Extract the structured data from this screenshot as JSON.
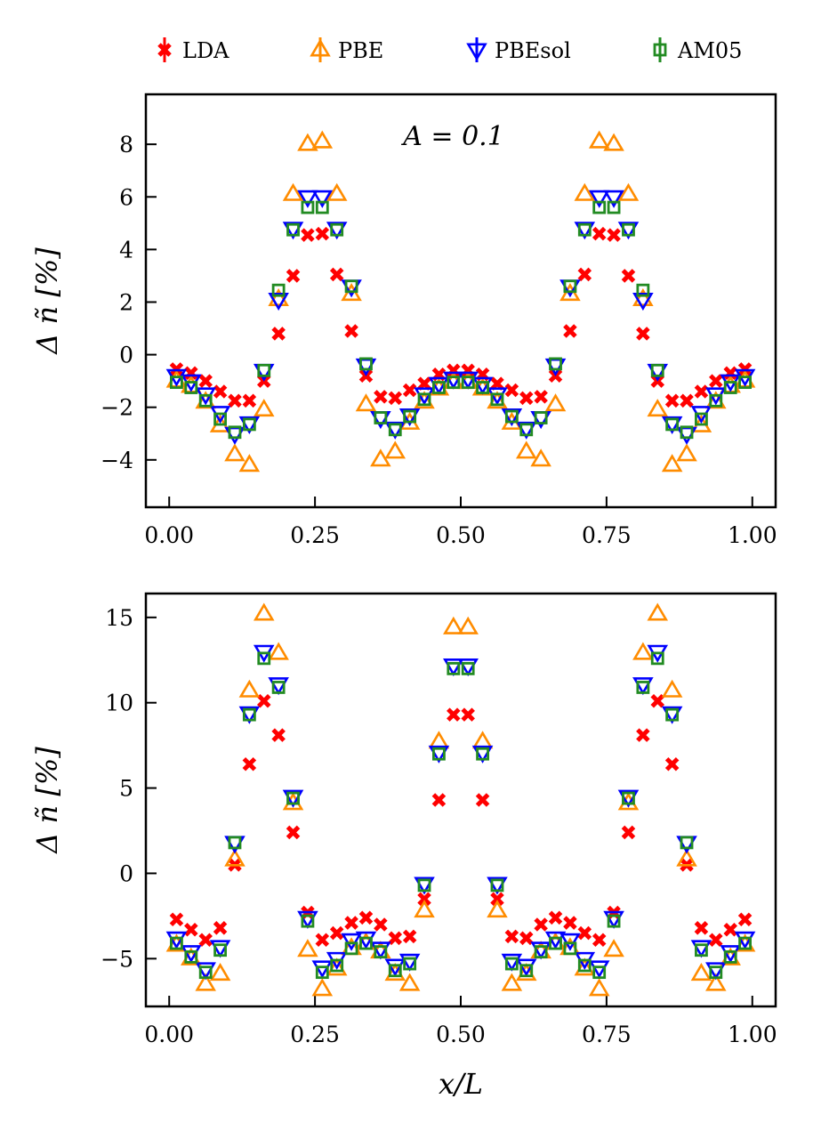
{
  "legend": [
    {
      "key": "LDA",
      "label": "LDA",
      "marker": "x",
      "color": "#ff0000"
    },
    {
      "key": "PBE",
      "label": "PBE",
      "marker": "triangle-up",
      "color": "#ff8c00"
    },
    {
      "key": "PBEsol",
      "label": "PBEsol",
      "marker": "triangle-down",
      "color": "#0000ff"
    },
    {
      "key": "AM05",
      "label": "AM05",
      "marker": "square",
      "color": "#228b22"
    }
  ],
  "panels": {
    "top": {
      "annotation": "A = 0.1",
      "ylabel": "Δ ñ [%]"
    },
    "bottom": {
      "xlabel": "x/L",
      "ylabel": "Δ ñ [%]"
    }
  },
  "chart_data": [
    {
      "type": "scatter",
      "title": "",
      "annotation": "A = 0.1",
      "xlabel": "",
      "ylabel": "Δ ñ [%]",
      "xlim": [
        -0.04,
        1.04
      ],
      "ylim": [
        -5.8,
        9.9
      ],
      "xticks": [
        0,
        0.25,
        0.5,
        0.75,
        1.0
      ],
      "xtick_labels": [
        "0.00",
        "0.25",
        "0.50",
        "0.75",
        "1.00"
      ],
      "yticks": [
        -4,
        -2,
        0,
        2,
        4,
        6,
        8
      ],
      "ytick_labels": [
        "−4",
        "−2",
        "0",
        "2",
        "4",
        "6",
        "8"
      ],
      "x": [
        0.0125,
        0.0375,
        0.0625,
        0.0875,
        0.1125,
        0.1375,
        0.1625,
        0.1875,
        0.2125,
        0.2375,
        0.2625,
        0.2875,
        0.3125,
        0.3375,
        0.3625,
        0.3875,
        0.4125,
        0.4375,
        0.4625,
        0.4875,
        0.5125,
        0.5375,
        0.5625,
        0.5875,
        0.6125,
        0.6375,
        0.6625,
        0.6875,
        0.7125,
        0.7375,
        0.7625,
        0.7875,
        0.8125,
        0.8375,
        0.8625,
        0.8875,
        0.9125,
        0.9375,
        0.9625,
        0.9875
      ],
      "series": [
        {
          "name": "LDA",
          "values": [
            -0.55,
            -0.7,
            -1.0,
            -1.4,
            -1.75,
            -1.75,
            -1.0,
            0.8,
            3.0,
            4.55,
            4.6,
            3.05,
            0.9,
            -0.8,
            -1.6,
            -1.65,
            -1.35,
            -1.1,
            -0.75,
            -0.6,
            -0.6,
            -0.75,
            -1.1,
            -1.35,
            -1.65,
            -1.6,
            -0.8,
            0.9,
            3.05,
            4.6,
            4.55,
            3.0,
            0.8,
            -1.0,
            -1.75,
            -1.75,
            -1.4,
            -1.0,
            -0.7,
            -0.55
          ]
        },
        {
          "name": "PBE",
          "values": [
            -1.0,
            -1.2,
            -1.8,
            -2.7,
            -3.8,
            -4.2,
            -2.1,
            2.1,
            6.1,
            8.0,
            8.1,
            6.1,
            2.3,
            -1.9,
            -4.0,
            -3.7,
            -2.6,
            -1.8,
            -1.3,
            -1.05,
            -1.05,
            -1.3,
            -1.8,
            -2.6,
            -3.7,
            -4.0,
            -1.9,
            2.3,
            6.1,
            8.1,
            8.0,
            6.1,
            2.1,
            -2.1,
            -4.2,
            -3.8,
            -2.7,
            -1.8,
            -1.2,
            -1.0
          ]
        },
        {
          "name": "PBEsol",
          "values": [
            -0.8,
            -1.0,
            -1.5,
            -2.2,
            -3.0,
            -2.6,
            -0.6,
            2.1,
            4.8,
            6.0,
            6.0,
            4.8,
            2.6,
            -0.4,
            -2.4,
            -2.8,
            -2.3,
            -1.5,
            -1.1,
            -0.9,
            -0.9,
            -1.1,
            -1.5,
            -2.3,
            -2.8,
            -2.4,
            -0.4,
            2.6,
            4.8,
            6.0,
            6.0,
            4.8,
            2.1,
            -0.6,
            -2.6,
            -3.0,
            -2.2,
            -1.5,
            -1.0,
            -0.8
          ]
        },
        {
          "name": "AM05",
          "values": [
            -1.05,
            -1.25,
            -1.75,
            -2.45,
            -2.95,
            -2.65,
            -0.6,
            2.45,
            4.75,
            5.6,
            5.6,
            4.75,
            2.6,
            -0.35,
            -2.4,
            -2.85,
            -2.35,
            -1.7,
            -1.25,
            -1.05,
            -1.05,
            -1.25,
            -1.7,
            -2.35,
            -2.85,
            -2.4,
            -0.35,
            2.6,
            4.75,
            5.6,
            5.6,
            4.75,
            2.45,
            -0.6,
            -2.65,
            -2.95,
            -2.45,
            -1.75,
            -1.25,
            -1.05
          ]
        }
      ]
    },
    {
      "type": "scatter",
      "title": "",
      "xlabel": "x/L",
      "ylabel": "Δ ñ [%]",
      "xlim": [
        -0.04,
        1.04
      ],
      "ylim": [
        -7.8,
        16.4
      ],
      "xticks": [
        0,
        0.25,
        0.5,
        0.75,
        1.0
      ],
      "xtick_labels": [
        "0.00",
        "0.25",
        "0.50",
        "0.75",
        "1.00"
      ],
      "yticks": [
        -5,
        0,
        5,
        10,
        15
      ],
      "ytick_labels": [
        "−5",
        "0",
        "5",
        "10",
        "15"
      ],
      "x": [
        0.0125,
        0.0375,
        0.0625,
        0.0875,
        0.1125,
        0.1375,
        0.1625,
        0.1875,
        0.2125,
        0.2375,
        0.2625,
        0.2875,
        0.3125,
        0.3375,
        0.3625,
        0.3875,
        0.4125,
        0.4375,
        0.4625,
        0.4875,
        0.5125,
        0.5375,
        0.5625,
        0.5875,
        0.6125,
        0.6375,
        0.6625,
        0.6875,
        0.7125,
        0.7375,
        0.7625,
        0.7875,
        0.8125,
        0.8375,
        0.8625,
        0.8875,
        0.9125,
        0.9375,
        0.9625,
        0.9875
      ],
      "series": [
        {
          "name": "LDA",
          "values": [
            -2.7,
            -3.3,
            -3.9,
            -3.2,
            0.5,
            6.4,
            10.1,
            8.1,
            2.4,
            -2.3,
            -3.9,
            -3.5,
            -2.9,
            -2.6,
            -3.0,
            -3.8,
            -3.7,
            -1.5,
            4.3,
            9.3,
            9.3,
            4.3,
            -1.5,
            -3.7,
            -3.8,
            -3.0,
            -2.6,
            -2.9,
            -3.5,
            -3.9,
            -2.3,
            2.4,
            8.1,
            10.1,
            6.4,
            0.5,
            -3.2,
            -3.9,
            -3.3,
            -2.7
          ]
        },
        {
          "name": "PBE",
          "values": [
            -4.2,
            -5.0,
            -6.5,
            -5.9,
            0.8,
            10.7,
            15.2,
            12.9,
            4.1,
            -4.5,
            -6.8,
            -5.6,
            -4.4,
            -4.1,
            -4.6,
            -5.9,
            -6.5,
            -2.2,
            7.7,
            14.4,
            14.4,
            7.7,
            -2.2,
            -6.5,
            -5.9,
            -4.6,
            -4.1,
            -4.4,
            -5.6,
            -6.8,
            -4.5,
            4.1,
            12.9,
            15.2,
            10.7,
            0.8,
            -5.9,
            -6.5,
            -5.0,
            -4.2
          ]
        },
        {
          "name": "PBEsol",
          "values": [
            -3.8,
            -4.6,
            -5.6,
            -4.3,
            1.8,
            9.4,
            13.0,
            11.1,
            4.5,
            -2.6,
            -5.5,
            -5.0,
            -3.9,
            -3.8,
            -4.4,
            -5.4,
            -5.1,
            -0.6,
            7.1,
            12.2,
            12.2,
            7.1,
            -0.6,
            -5.1,
            -5.4,
            -4.4,
            -3.8,
            -3.9,
            -5.0,
            -5.5,
            -2.6,
            4.5,
            11.1,
            13.0,
            9.4,
            1.8,
            -4.3,
            -5.6,
            -4.6,
            -3.8
          ]
        },
        {
          "name": "AM05",
          "values": [
            -4.1,
            -4.9,
            -5.8,
            -4.5,
            1.8,
            9.3,
            12.6,
            10.9,
            4.4,
            -2.8,
            -5.8,
            -5.4,
            -4.4,
            -4.1,
            -4.6,
            -5.7,
            -5.3,
            -0.7,
            7.0,
            12.0,
            12.0,
            7.0,
            -0.7,
            -5.3,
            -5.7,
            -4.6,
            -4.1,
            -4.4,
            -5.4,
            -5.8,
            -2.8,
            4.4,
            10.9,
            12.6,
            9.3,
            1.8,
            -4.5,
            -5.8,
            -4.9,
            -4.1
          ]
        }
      ]
    }
  ]
}
